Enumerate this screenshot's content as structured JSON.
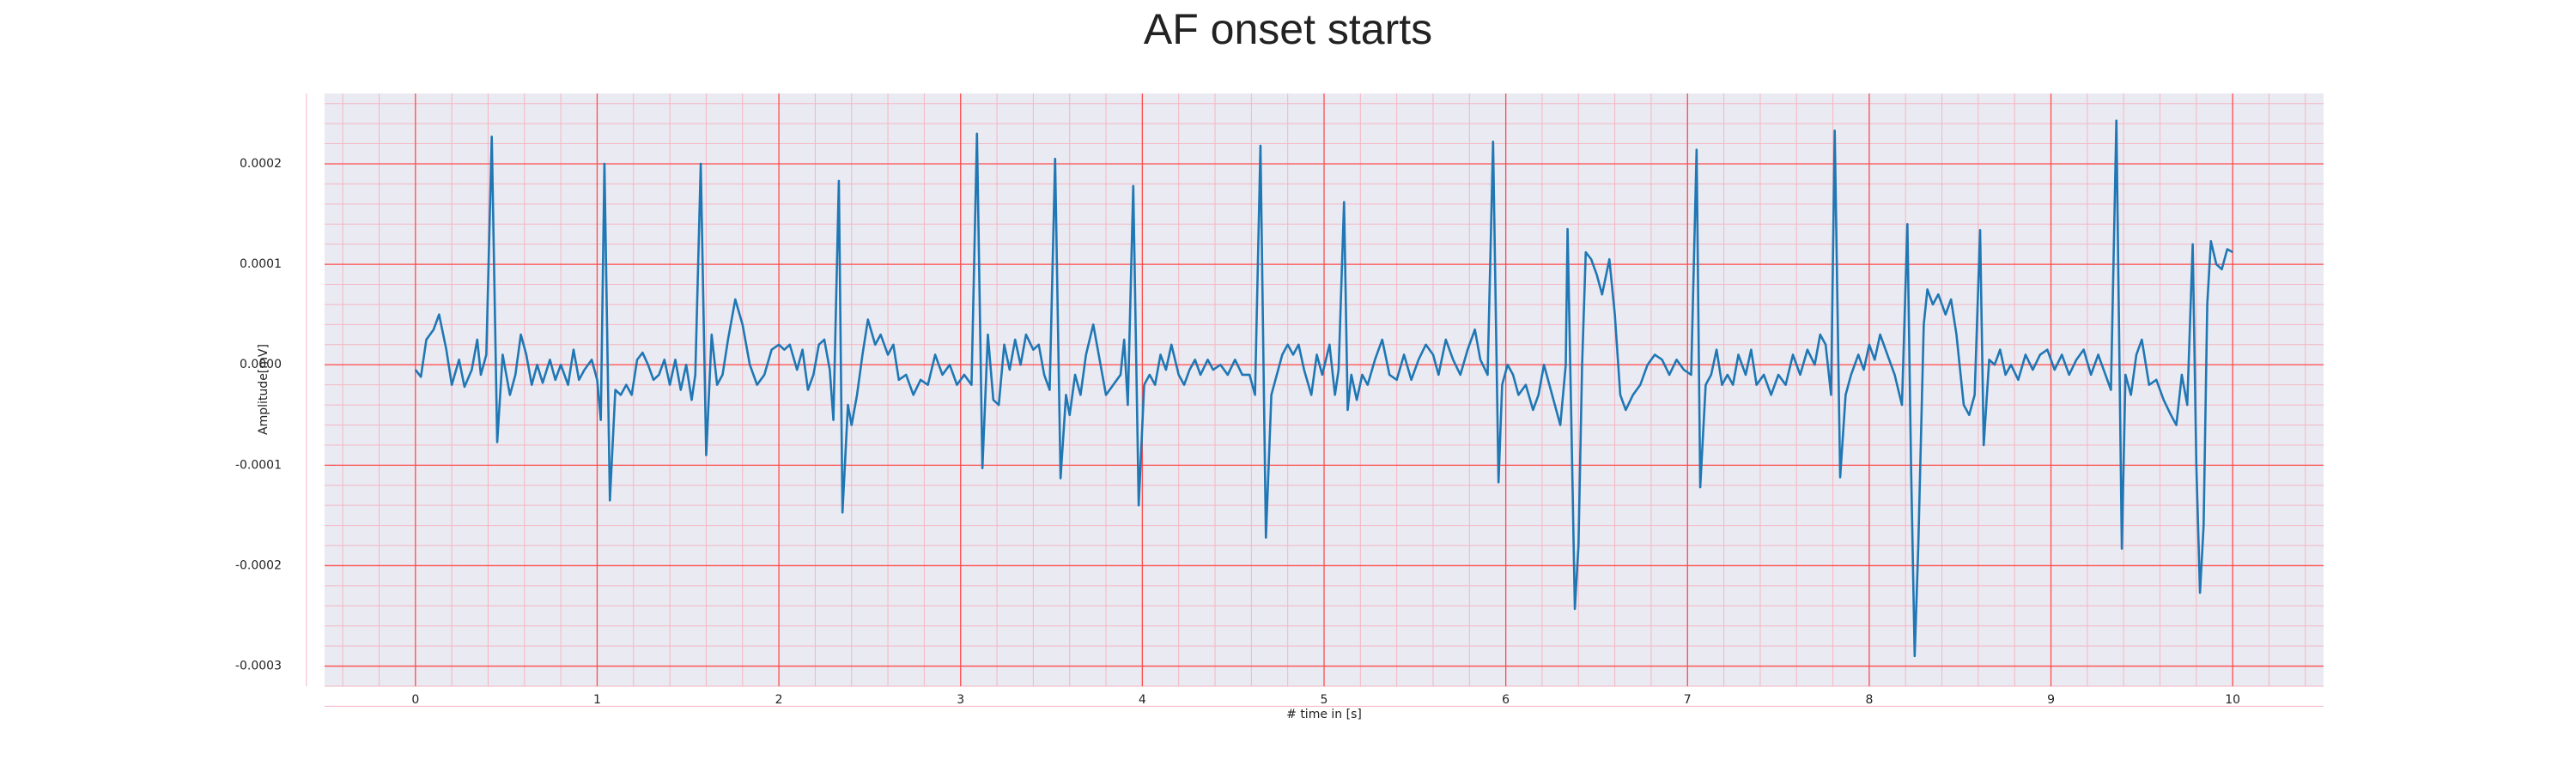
{
  "chart_data": {
    "type": "line",
    "title": "AF onset starts",
    "xlabel": "# time in [s]",
    "ylabel": "Amplitude[mV]",
    "color": "#1f77b4",
    "grid": true,
    "grid_color": "#ff4d4d",
    "minor_grid": true,
    "minor_divisions": 5,
    "xlim": [
      -0.5,
      10.5
    ],
    "xticks": [
      0,
      1,
      2,
      3,
      4,
      5,
      6,
      7,
      8,
      9,
      10
    ],
    "ylim": [
      -0.00032,
      0.00027
    ],
    "yticks": [
      -0.0003,
      -0.0002,
      -0.0001,
      {
        "value": 0,
        "label": "0.0000"
      },
      0.0001,
      0.0002
    ],
    "x": [
      0.0,
      0.03,
      0.06,
      0.1,
      0.13,
      0.17,
      0.2,
      0.24,
      0.27,
      0.31,
      0.34,
      0.36,
      0.39,
      0.42,
      0.45,
      0.48,
      0.52,
      0.55,
      0.58,
      0.61,
      0.64,
      0.67,
      0.7,
      0.74,
      0.77,
      0.8,
      0.84,
      0.87,
      0.9,
      0.93,
      0.97,
      1.0,
      1.02,
      1.04,
      1.07,
      1.1,
      1.13,
      1.16,
      1.19,
      1.22,
      1.25,
      1.28,
      1.31,
      1.34,
      1.37,
      1.4,
      1.43,
      1.46,
      1.49,
      1.52,
      1.54,
      1.57,
      1.6,
      1.63,
      1.66,
      1.69,
      1.72,
      1.76,
      1.8,
      1.84,
      1.88,
      1.92,
      1.96,
      2.0,
      2.03,
      2.06,
      2.1,
      2.13,
      2.16,
      2.19,
      2.22,
      2.25,
      2.28,
      2.3,
      2.33,
      2.35,
      2.38,
      2.4,
      2.43,
      2.46,
      2.49,
      2.53,
      2.56,
      2.6,
      2.63,
      2.66,
      2.7,
      2.74,
      2.78,
      2.82,
      2.86,
      2.9,
      2.94,
      2.98,
      3.02,
      3.06,
      3.09,
      3.12,
      3.15,
      3.18,
      3.21,
      3.24,
      3.27,
      3.3,
      3.33,
      3.36,
      3.4,
      3.43,
      3.46,
      3.49,
      3.52,
      3.55,
      3.58,
      3.6,
      3.63,
      3.66,
      3.69,
      3.73,
      3.77,
      3.8,
      3.84,
      3.88,
      3.9,
      3.92,
      3.95,
      3.98,
      4.01,
      4.04,
      4.07,
      4.1,
      4.13,
      4.16,
      4.2,
      4.23,
      4.26,
      4.29,
      4.32,
      4.36,
      4.39,
      4.43,
      4.47,
      4.51,
      4.55,
      4.59,
      4.62,
      4.65,
      4.68,
      4.71,
      4.74,
      4.77,
      4.8,
      4.83,
      4.86,
      4.89,
      4.93,
      4.96,
      4.99,
      5.03,
      5.06,
      5.08,
      5.11,
      5.13,
      5.15,
      5.18,
      5.21,
      5.24,
      5.28,
      5.32,
      5.36,
      5.4,
      5.44,
      5.48,
      5.52,
      5.56,
      5.6,
      5.63,
      5.67,
      5.71,
      5.75,
      5.79,
      5.83,
      5.86,
      5.9,
      5.93,
      5.96,
      5.98,
      6.01,
      6.04,
      6.07,
      6.11,
      6.15,
      6.18,
      6.21,
      6.24,
      6.27,
      6.3,
      6.33,
      6.34,
      6.36,
      6.38,
      6.4,
      6.42,
      6.44,
      6.47,
      6.5,
      6.53,
      6.57,
      6.6,
      6.63,
      6.66,
      6.7,
      6.74,
      6.78,
      6.82,
      6.86,
      6.9,
      6.94,
      6.98,
      7.02,
      7.05,
      7.07,
      7.1,
      7.13,
      7.16,
      7.19,
      7.22,
      7.25,
      7.28,
      7.32,
      7.35,
      7.38,
      7.42,
      7.46,
      7.5,
      7.54,
      7.58,
      7.62,
      7.66,
      7.7,
      7.73,
      7.76,
      7.79,
      7.81,
      7.84,
      7.87,
      7.9,
      7.94,
      7.97,
      8.0,
      8.03,
      8.06,
      8.1,
      8.14,
      8.18,
      8.21,
      8.23,
      8.25,
      8.27,
      8.3,
      8.32,
      8.35,
      8.38,
      8.42,
      8.45,
      8.48,
      8.52,
      8.55,
      8.58,
      8.61,
      8.63,
      8.66,
      8.69,
      8.72,
      8.75,
      8.78,
      8.82,
      8.86,
      8.9,
      8.94,
      8.98,
      9.02,
      9.06,
      9.1,
      9.14,
      9.18,
      9.22,
      9.26,
      9.3,
      9.33,
      9.36,
      9.39,
      9.41,
      9.44,
      9.47,
      9.5,
      9.54,
      9.58,
      9.62,
      9.66,
      9.69,
      9.72,
      9.75,
      9.78,
      9.8,
      9.82,
      9.84,
      9.86,
      9.88,
      9.91,
      9.94,
      9.97,
      10.0
    ],
    "values": [
      -5e-06,
      -1.2e-05,
      2.5e-05,
      3.5e-05,
      5e-05,
      1.5e-05,
      -2e-05,
      5e-06,
      -2.2e-05,
      -5e-06,
      2.5e-05,
      -1e-05,
      1e-05,
      0.000227,
      -7.7e-05,
      1e-05,
      -3e-05,
      -1e-05,
      3e-05,
      1e-05,
      -2e-05,
      0,
      -1.8e-05,
      5e-06,
      -1.5e-05,
      0,
      -2e-05,
      1.5e-05,
      -1.5e-05,
      -5e-06,
      5e-06,
      -1.5e-05,
      -5.5e-05,
      0.0002,
      -0.000135,
      -2.5e-05,
      -3e-05,
      -2e-05,
      -3e-05,
      5e-06,
      1.2e-05,
      0,
      -1.5e-05,
      -1e-05,
      5e-06,
      -2e-05,
      5e-06,
      -2.5e-05,
      0,
      -3.5e-05,
      -1e-05,
      0.0002,
      -9e-05,
      3e-05,
      -2e-05,
      -1e-05,
      2.5e-05,
      6.5e-05,
      4e-05,
      0,
      -2e-05,
      -1e-05,
      1.5e-05,
      2e-05,
      1.5e-05,
      2e-05,
      -5e-06,
      1.5e-05,
      -2.5e-05,
      -1e-05,
      2e-05,
      2.5e-05,
      -5e-06,
      -5.5e-05,
      0.000183,
      -0.000147,
      -4e-05,
      -6e-05,
      -3e-05,
      1e-05,
      4.5e-05,
      2e-05,
      3e-05,
      1e-05,
      2e-05,
      -1.5e-05,
      -1e-05,
      -3e-05,
      -1.5e-05,
      -2e-05,
      1e-05,
      -1e-05,
      0,
      -2e-05,
      -1e-05,
      -2e-05,
      0.00023,
      -0.000103,
      3e-05,
      -3.5e-05,
      -4e-05,
      2e-05,
      -5e-06,
      2.5e-05,
      0,
      3e-05,
      1.5e-05,
      2e-05,
      -1e-05,
      -2.5e-05,
      0.000205,
      -0.000113,
      -3e-05,
      -5e-05,
      -1e-05,
      -3e-05,
      1e-05,
      4e-05,
      0,
      -3e-05,
      -2e-05,
      -1e-05,
      2.5e-05,
      -4e-05,
      0.000178,
      -0.00014,
      -2e-05,
      -1e-05,
      -2e-05,
      1e-05,
      -5e-06,
      2e-05,
      -1e-05,
      -2e-05,
      -5e-06,
      5e-06,
      -1e-05,
      5e-06,
      -5e-06,
      0,
      -1e-05,
      5e-06,
      -1e-05,
      -1e-05,
      -3e-05,
      0.000218,
      -0.000172,
      -3e-05,
      -1e-05,
      1e-05,
      2e-05,
      1e-05,
      2e-05,
      -5e-06,
      -3e-05,
      1e-05,
      -1e-05,
      2e-05,
      -3e-05,
      -5e-06,
      0.000162,
      -4.5e-05,
      -1e-05,
      -3.5e-05,
      -1e-05,
      -2e-05,
      5e-06,
      2.5e-05,
      -1e-05,
      -1.5e-05,
      1e-05,
      -1.5e-05,
      5e-06,
      2e-05,
      1e-05,
      -1e-05,
      2.5e-05,
      5e-06,
      -1e-05,
      1.5e-05,
      3.5e-05,
      5e-06,
      -1e-05,
      0.000222,
      -0.000117,
      -2e-05,
      0,
      -1e-05,
      -3e-05,
      -2e-05,
      -4.5e-05,
      -3e-05,
      0,
      -2e-05,
      -4e-05,
      -6e-05,
      0,
      0.000135,
      -5e-05,
      -0.000243,
      -0.00018,
      0,
      0.000112,
      0.000105,
      9e-05,
      7e-05,
      0.000105,
      5e-05,
      -3e-05,
      -4.5e-05,
      -3e-05,
      -2e-05,
      0,
      1e-05,
      5e-06,
      -1e-05,
      5e-06,
      -5e-06,
      -1e-05,
      0.000214,
      -0.000122,
      -2e-05,
      -1e-05,
      1.5e-05,
      -2e-05,
      -1e-05,
      -2e-05,
      1e-05,
      -1e-05,
      1.5e-05,
      -2e-05,
      -1e-05,
      -3e-05,
      -1e-05,
      -2e-05,
      1e-05,
      -1e-05,
      1.5e-05,
      0,
      3e-05,
      2e-05,
      -3e-05,
      0.000233,
      -0.000112,
      -3e-05,
      -1e-05,
      1e-05,
      -5e-06,
      2e-05,
      5e-06,
      3e-05,
      1e-05,
      -1e-05,
      -4e-05,
      0.00014,
      -0.0001,
      -0.00029,
      -0.00018,
      4e-05,
      7.5e-05,
      6e-05,
      7e-05,
      5e-05,
      6.5e-05,
      3e-05,
      -4e-05,
      -5e-05,
      -3e-05,
      0.000134,
      -8e-05,
      5e-06,
      0,
      1.5e-05,
      -1e-05,
      0,
      -1.5e-05,
      1e-05,
      -5e-06,
      1e-05,
      1.5e-05,
      -5e-06,
      1e-05,
      -1e-05,
      5e-06,
      1.5e-05,
      -1e-05,
      1e-05,
      -1e-05,
      -2.5e-05,
      0.000243,
      -0.000183,
      -1e-05,
      -3e-05,
      1e-05,
      2.5e-05,
      -2e-05,
      -1.5e-05,
      -3.5e-05,
      -5e-05,
      -6e-05,
      -1e-05,
      -4e-05,
      0.00012,
      -0.0001,
      -0.000227,
      -0.00016,
      6e-05,
      0.000123,
      0.0001,
      9.5e-05,
      0.000115,
      0.000112
    ]
  }
}
